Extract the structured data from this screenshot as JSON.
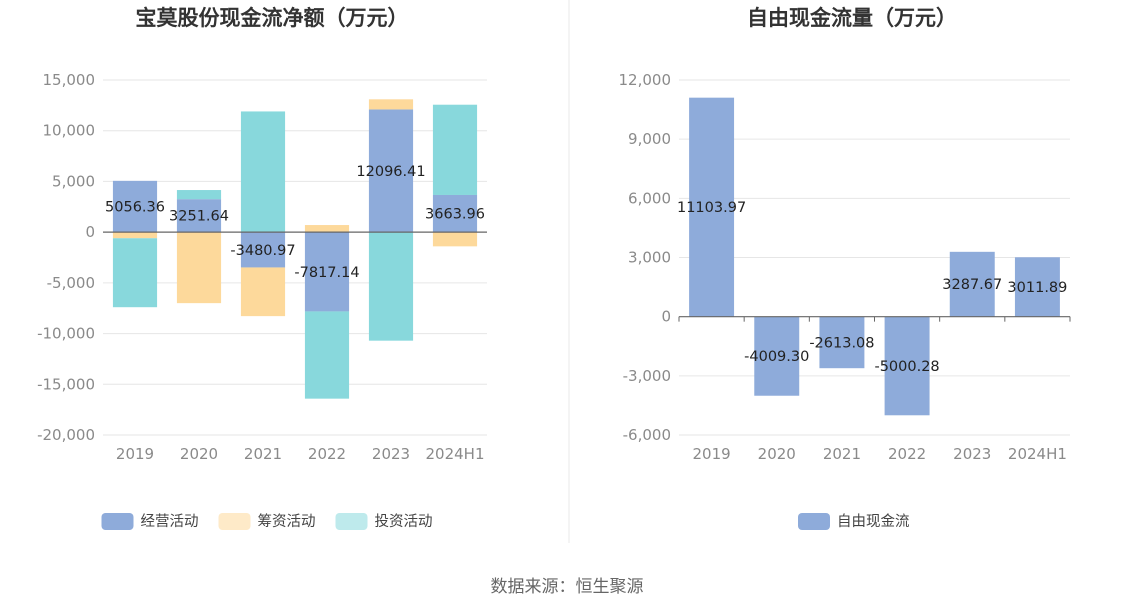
{
  "colors": {
    "operating": "#8eabda",
    "financing": "#fdd99b",
    "investing": "#88d8dc",
    "free_cash_flow": "#8eabda",
    "grid": "#e6e6e6",
    "axis": "#666666",
    "divider": "#e8e8e8"
  },
  "source": "数据来源：恒生聚源",
  "chart_data": [
    {
      "type": "bar",
      "stacked": true,
      "title": "宝莫股份现金流净额（万元）",
      "categories": [
        "2019",
        "2020",
        "2021",
        "2022",
        "2023",
        "2024H1"
      ],
      "ylim": [
        -20000,
        15000
      ],
      "yticks": [
        15000,
        10000,
        5000,
        0,
        -5000,
        -10000,
        -15000,
        -20000
      ],
      "ytick_labels": [
        "15,000",
        "10,000",
        "5,000",
        "0",
        "-5,000",
        "-10,000",
        "-15,000",
        "-20,000"
      ],
      "grid": true,
      "legend_position": "bottom",
      "series": [
        {
          "name": "经营活动",
          "key": "operating",
          "values": [
            5056.36,
            3251.64,
            -3480.97,
            -7817.14,
            12096.41,
            3663.96
          ],
          "labels": [
            "5056.36",
            "3251.64",
            "-3480.97",
            "-7817.14",
            "12096.41",
            "3663.96"
          ]
        },
        {
          "name": "筹资活动",
          "key": "financing",
          "values": [
            -600,
            -7000,
            -4800,
            700,
            1000,
            -1400
          ]
        },
        {
          "name": "投资活动",
          "key": "investing",
          "values": [
            -6800,
            900,
            11900,
            -8600,
            -10700,
            8900
          ]
        }
      ],
      "legend": [
        "经营活动",
        "筹资活动",
        "投资活动"
      ]
    },
    {
      "type": "bar",
      "title": "自由现金流量（万元）",
      "categories": [
        "2019",
        "2020",
        "2021",
        "2022",
        "2023",
        "2024H1"
      ],
      "ylim": [
        -6000,
        12000
      ],
      "yticks": [
        12000,
        9000,
        6000,
        3000,
        0,
        -3000,
        -6000
      ],
      "ytick_labels": [
        "12,000",
        "9,000",
        "6,000",
        "3,000",
        "0",
        "-3,000",
        "-6,000"
      ],
      "grid": true,
      "legend_position": "bottom",
      "series": [
        {
          "name": "自由现金流",
          "key": "free_cash_flow",
          "values": [
            11103.97,
            -4009.3,
            -2613.08,
            -5000.28,
            3287.67,
            3011.89
          ],
          "labels": [
            "11103.97",
            "-4009.30",
            "-2613.08",
            "-5000.28",
            "3287.67",
            "3011.89"
          ]
        }
      ],
      "legend": [
        "自由现金流"
      ]
    }
  ]
}
